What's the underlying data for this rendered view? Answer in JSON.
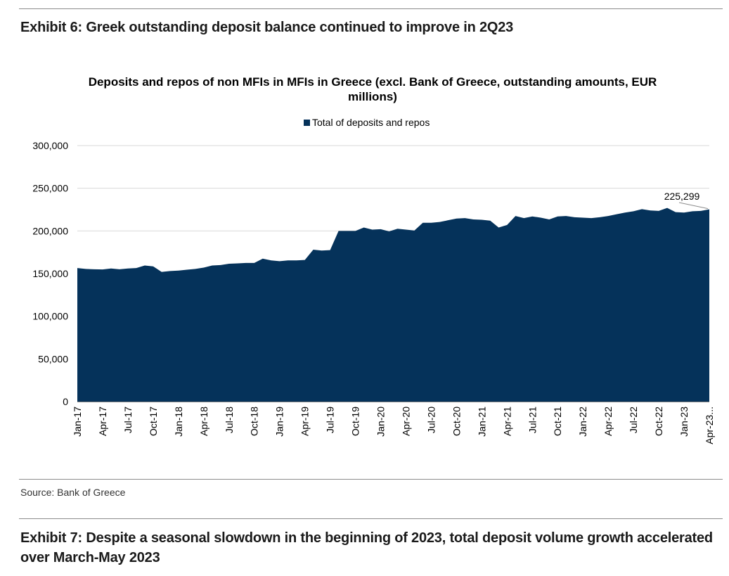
{
  "exhibit6": {
    "title": "Exhibit 6: Greek outstanding deposit balance continued to improve in 2Q23"
  },
  "source": "Source: Bank of Greece",
  "exhibit7": {
    "title": "Exhibit 7: Despite a seasonal slowdown in the beginning of 2023, total deposit volume growth accelerated over March-May 2023"
  },
  "colors": {
    "fill": "#05325a",
    "grid": "#d9d9d9"
  },
  "chart_data": {
    "type": "area",
    "title": "Deposits and repos of non MFIs in MFIs in Greece (excl. Bank of Greece, outstanding amounts, EUR millions)",
    "legend": [
      "Total of deposits and repos"
    ],
    "legend_position": "top-center",
    "xlabel": "",
    "ylabel": "",
    "ylim": [
      0,
      300000
    ],
    "yticks": [
      "0",
      "50,000",
      "100,000",
      "150,000",
      "200,000",
      "250,000",
      "300,000"
    ],
    "grid": true,
    "x_tick_labels": [
      "Jan-17",
      "Apr-17",
      "Jul-17",
      "Oct-17",
      "Jan-18",
      "Apr-18",
      "Jul-18",
      "Oct-18",
      "Jan-19",
      "Apr-19",
      "Jul-19",
      "Oct-19",
      "Jan-20",
      "Apr-20",
      "Jul-20",
      "Oct-20",
      "Jan-21",
      "Apr-21",
      "Jul-21",
      "Oct-21",
      "Jan-22",
      "Apr-22",
      "Jul-22",
      "Oct-22",
      "Jan-23",
      "Apr-23"
    ],
    "last_x_label_suffix": "...",
    "x_start": "Jan-17",
    "x_end": "May-23",
    "frequency": "monthly",
    "series": [
      {
        "name": "Total of deposits and repos",
        "values": [
          156500,
          155500,
          155000,
          154800,
          156000,
          155000,
          156000,
          156500,
          159500,
          158500,
          152000,
          153000,
          153500,
          154500,
          155500,
          157000,
          159500,
          160000,
          161500,
          162000,
          162500,
          162500,
          167500,
          165500,
          164500,
          165500,
          165500,
          166000,
          178000,
          177000,
          177500,
          200000,
          200000,
          200000,
          204000,
          201500,
          202000,
          199500,
          202500,
          201500,
          200500,
          209500,
          209500,
          210500,
          212500,
          214500,
          215000,
          213500,
          213000,
          212000,
          204000,
          207000,
          217500,
          215000,
          217000,
          215500,
          213500,
          217000,
          217500,
          216000,
          215500,
          215000,
          216000,
          217500,
          219500,
          221500,
          223000,
          225500,
          224000,
          223500,
          227000,
          222000,
          221500,
          223000,
          223500,
          225299
        ]
      }
    ],
    "annotations": [
      {
        "label": "225,299",
        "at": "May-23"
      }
    ]
  }
}
